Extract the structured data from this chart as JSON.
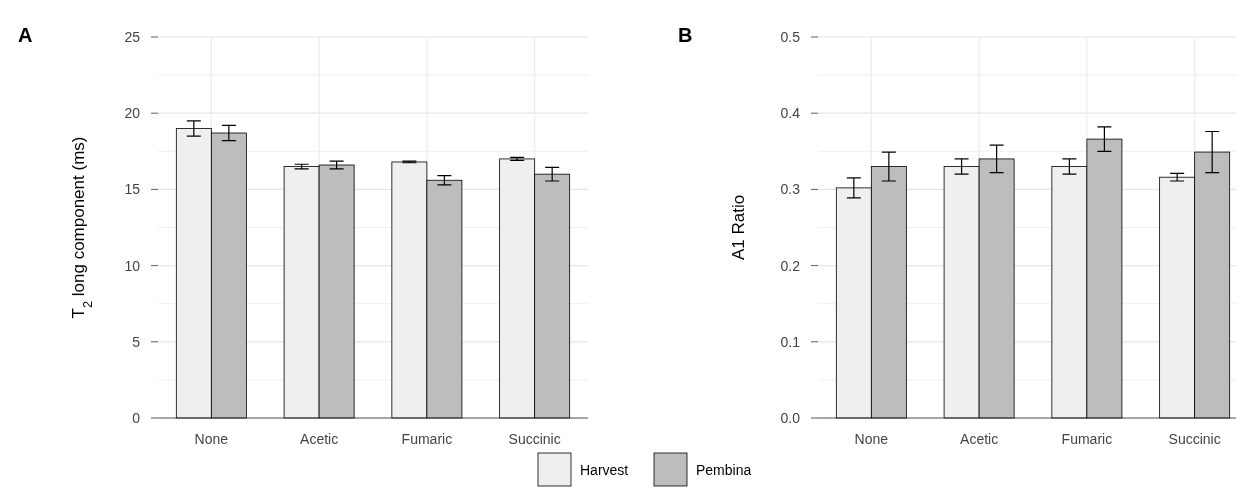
{
  "chart_data": [
    {
      "type": "bar",
      "title": "A",
      "ylabel": "T$_{2}$ long component (ms)",
      "categories": [
        "None",
        "Acetic",
        "Fumaric",
        "Succinic"
      ],
      "series": [
        {
          "name": "Harvest",
          "color": "#efefef",
          "values": [
            19.0,
            16.5,
            16.8,
            17.0
          ],
          "errors": [
            0.5,
            0.15,
            0.05,
            0.1
          ]
        },
        {
          "name": "Pembina",
          "color": "#bdbdbd",
          "values": [
            18.7,
            16.6,
            15.6,
            16.0
          ],
          "errors": [
            0.5,
            0.25,
            0.3,
            0.45
          ]
        }
      ],
      "ylim": [
        0,
        25
      ],
      "yticks": [
        0,
        5,
        10,
        15,
        20,
        25
      ],
      "grid": true,
      "legend": "bottom"
    },
    {
      "type": "bar",
      "title": "B",
      "ylabel": "A1 Ratio",
      "categories": [
        "None",
        "Acetic",
        "Fumaric",
        "Succinic"
      ],
      "series": [
        {
          "color": "#efefef",
          "values": [
            0.302,
            0.33,
            0.33,
            0.316
          ],
          "errors": [
            0.013,
            0.01,
            0.01,
            0.005
          ]
        },
        {
          "color": "#bdbdbd",
          "values": [
            0.33,
            0.34,
            0.366,
            0.349
          ],
          "errors": [
            0.019,
            0.018,
            0.016,
            0.027
          ]
        }
      ],
      "ylim": [
        0,
        0.5
      ],
      "yticks": [
        {
          "value": 0,
          "label": "0.0"
        },
        0.1,
        0.2,
        0.3,
        0.4,
        0.5
      ],
      "grid": true
    }
  ]
}
